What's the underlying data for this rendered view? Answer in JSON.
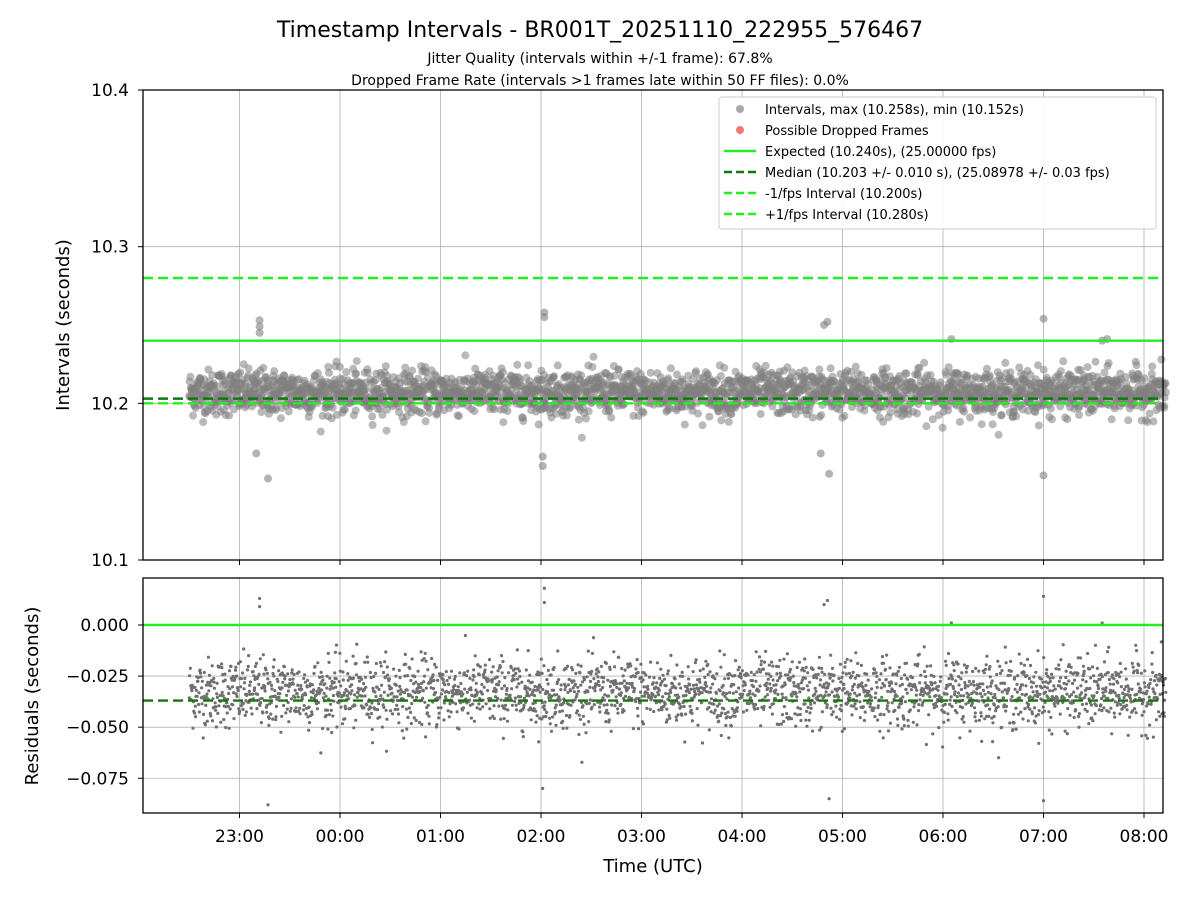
{
  "chart_data": [
    {
      "type": "scatter",
      "title": "Timestamp Intervals - BR001T_20251110_222955_576467",
      "subtitle_lines": [
        "Jitter Quality (intervals within +/-1 frame): 67.8%",
        "Dropped Frame Rate (intervals >1 frames late within 50 FF files): 0.0%"
      ],
      "ylabel": "Intervals (seconds)",
      "ylim": [
        10.1,
        10.4
      ],
      "yticks": [
        "10.1",
        "10.2",
        "10.3",
        "10.4"
      ],
      "grid": true,
      "legend_position": "top-right",
      "x_start": "22:30",
      "x_end": "08:13",
      "point_color": "#808080",
      "legend": [
        {
          "label": "Intervals, max (10.258s), min (10.152s)",
          "kind": "dot",
          "color": "#999999"
        },
        {
          "label": "Possible Dropped Frames",
          "kind": "dot",
          "color": "#f06060"
        },
        {
          "label": "Expected (10.240s), (25.00000 fps)",
          "kind": "solid",
          "color": "#22ee22"
        },
        {
          "label": "Median (10.203 +/- 0.010 s), (25.08978 +/- 0.03 fps)",
          "kind": "dashed",
          "color": "#117711"
        },
        {
          "label": "-1/fps Interval (10.200s)",
          "kind": "dashed",
          "color": "#22ee22"
        },
        {
          "label": "+1/fps Interval (10.280s)",
          "kind": "dashed",
          "color": "#22ee22"
        }
      ],
      "hlines": [
        {
          "y": 10.24,
          "style": "solid",
          "color": "#22ee22"
        },
        {
          "y": 10.203,
          "style": "dashed",
          "color": "#117711"
        },
        {
          "y": 10.2,
          "style": "dashed",
          "color": "#22ee22"
        },
        {
          "y": 10.28,
          "style": "dashed",
          "color": "#22ee22"
        }
      ],
      "series": [
        {
          "y_center": 10.207,
          "y_spread": 0.01,
          "outliers": [
            {
              "x": "23:12",
              "y": 10.253
            },
            {
              "x": "23:12",
              "y": 10.249
            },
            {
              "x": "23:12",
              "y": 10.245
            },
            {
              "x": "23:17",
              "y": 10.152
            },
            {
              "x": "02:02",
              "y": 10.258
            },
            {
              "x": "02:02",
              "y": 10.255
            },
            {
              "x": "02:01",
              "y": 10.166
            },
            {
              "x": "02:01",
              "y": 10.16
            },
            {
              "x": "04:49",
              "y": 10.25
            },
            {
              "x": "04:51",
              "y": 10.252
            },
            {
              "x": "04:52",
              "y": 10.155
            },
            {
              "x": "07:00",
              "y": 10.254
            },
            {
              "x": "07:00",
              "y": 10.154
            },
            {
              "x": "07:35",
              "y": 10.24
            },
            {
              "x": "07:38",
              "y": 10.241
            },
            {
              "x": "06:05",
              "y": 10.241
            },
            {
              "x": "04:47",
              "y": 10.168
            },
            {
              "x": "23:10",
              "y": 10.168
            }
          ]
        }
      ]
    },
    {
      "type": "scatter",
      "xlabel": "Time (UTC)",
      "ylabel": "Residuals (seconds)",
      "ylim": [
        -0.092,
        0.023
      ],
      "yticks": [
        "0.000",
        "−0.025",
        "−0.050",
        "−0.075"
      ],
      "xticks": [
        "23:00",
        "00:00",
        "01:00",
        "02:00",
        "03:00",
        "04:00",
        "05:00",
        "06:00",
        "07:00",
        "08:00"
      ],
      "grid": true,
      "point_color": "#707070",
      "hlines": [
        {
          "y": 0.0,
          "style": "solid",
          "color": "#22ee22"
        },
        {
          "y": -0.037,
          "style": "dashed",
          "color": "#117711"
        }
      ],
      "series": [
        {
          "y_center": -0.033,
          "y_spread": 0.01,
          "outliers": [
            {
              "x": "23:12",
              "y": 0.013
            },
            {
              "x": "23:12",
              "y": 0.009
            },
            {
              "x": "23:17",
              "y": -0.088
            },
            {
              "x": "02:02",
              "y": 0.018
            },
            {
              "x": "02:02",
              "y": 0.011
            },
            {
              "x": "02:01",
              "y": -0.08
            },
            {
              "x": "04:49",
              "y": 0.01
            },
            {
              "x": "04:51",
              "y": 0.012
            },
            {
              "x": "04:52",
              "y": -0.085
            },
            {
              "x": "07:00",
              "y": 0.014
            },
            {
              "x": "07:00",
              "y": -0.086
            },
            {
              "x": "07:35",
              "y": 0.001
            },
            {
              "x": "06:05",
              "y": 0.001
            }
          ]
        }
      ]
    }
  ]
}
